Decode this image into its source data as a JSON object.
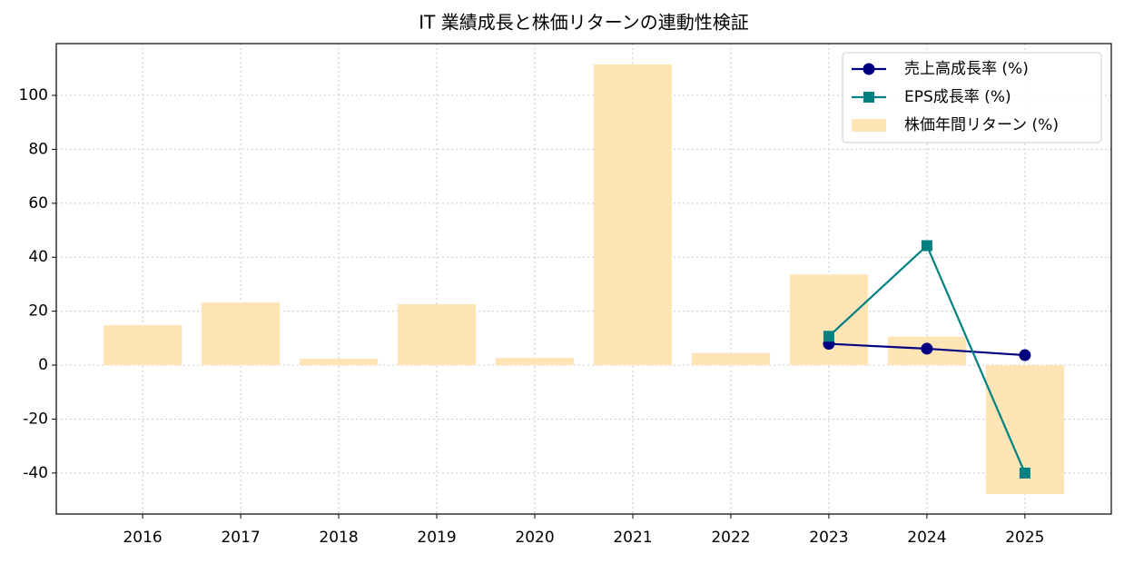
{
  "chart_data": {
    "type": "bar",
    "title": "IT 業績成長と株価リターンの連動性検証",
    "categories": [
      "2016",
      "2017",
      "2018",
      "2019",
      "2020",
      "2021",
      "2022",
      "2023",
      "2024",
      "2025"
    ],
    "series": [
      {
        "name": "売上高成長率 (%)",
        "type": "line",
        "marker": "circle",
        "color": "#000080",
        "values": [
          null,
          null,
          null,
          null,
          null,
          null,
          null,
          7.9,
          6.1,
          3.7
        ]
      },
      {
        "name": "EPS成長率 (%)",
        "type": "line",
        "marker": "square",
        "color": "#008080",
        "values": [
          null,
          null,
          null,
          null,
          null,
          null,
          null,
          10.7,
          44.3,
          -40
        ]
      },
      {
        "name": "株価年間リターン (%)",
        "type": "bar",
        "color": "#ffe4b5",
        "values": [
          14.8,
          23.3,
          2.4,
          22.6,
          2.7,
          111.5,
          4.5,
          33.6,
          10.6,
          -47.8
        ]
      }
    ],
    "ylim": [
      -55.2,
      119.2
    ],
    "yticks": [
      -40,
      -20,
      0,
      20,
      40,
      60,
      80,
      100
    ],
    "grid": true,
    "legend": "upper right"
  }
}
